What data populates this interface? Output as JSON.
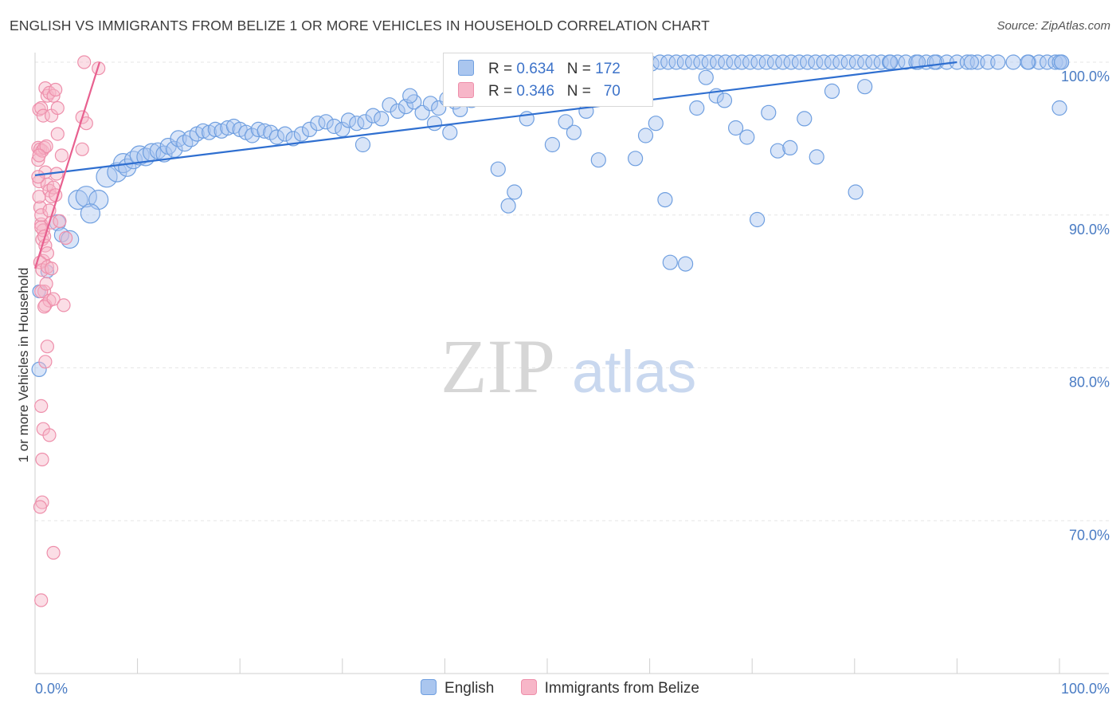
{
  "header": {
    "title": "ENGLISH VS IMMIGRANTS FROM BELIZE 1 OR MORE VEHICLES IN HOUSEHOLD CORRELATION CHART",
    "source": "Source: ZipAtlas.com"
  },
  "legend": {
    "rows": [
      {
        "r_label": "R =",
        "r_value": "0.634",
        "n_label": "N =",
        "n_value": "172"
      },
      {
        "r_label": "R =",
        "r_value": "0.346",
        "n_label": "N =",
        "n_value": "70"
      }
    ],
    "bottom": [
      "English",
      "Immigrants from Belize"
    ]
  },
  "watermark": {
    "zip": "ZIP",
    "atlas": "atlas"
  },
  "colors": {
    "english_fill": "#aac6ef",
    "english_stroke": "#6f9fe0",
    "english_line": "#2f6fd0",
    "belize_fill": "#f7b6c8",
    "belize_stroke": "#ee8fab",
    "belize_line": "#e8608f",
    "grid": "#e6e6e6",
    "tick_text": "#4a7cc4"
  },
  "chart_data": {
    "type": "scatter",
    "title": "ENGLISH VS IMMIGRANTS FROM BELIZE 1 OR MORE VEHICLES IN HOUSEHOLD CORRELATION CHART",
    "xlabel": "",
    "ylabel": "1 or more Vehicles in Household",
    "xlim": [
      0,
      100
    ],
    "ylim": [
      60,
      100
    ],
    "x_tick_labels": [
      "0.0%",
      "100.0%"
    ],
    "y_ticks": [
      {
        "value": 70,
        "label": "70.0%"
      },
      {
        "value": 80,
        "label": "80.0%"
      },
      {
        "value": 90,
        "label": "90.0%"
      },
      {
        "value": 100,
        "label": "100.0%"
      }
    ],
    "series": [
      {
        "name": "English",
        "R": 0.634,
        "N": 172,
        "trend": {
          "x": [
            0,
            90
          ],
          "y": [
            92.6,
            100.0
          ]
        },
        "points": [
          [
            0.4,
            85.0,
            8
          ],
          [
            0.4,
            79.9,
            9
          ],
          [
            1.2,
            86.3,
            8
          ],
          [
            2.2,
            89.5,
            10
          ],
          [
            2.6,
            88.7,
            9
          ],
          [
            3.4,
            88.4,
            11
          ],
          [
            4.2,
            91.0,
            12
          ],
          [
            5.0,
            91.2,
            13
          ],
          [
            6.2,
            91.0,
            12
          ],
          [
            5.4,
            90.1,
            12
          ],
          [
            7.0,
            92.5,
            13
          ],
          [
            8.0,
            92.8,
            12
          ],
          [
            8.6,
            93.4,
            12
          ],
          [
            9.0,
            93.1,
            11
          ],
          [
            9.6,
            93.6,
            11
          ],
          [
            10.2,
            93.9,
            12
          ],
          [
            10.8,
            93.8,
            11
          ],
          [
            11.4,
            94.1,
            11
          ],
          [
            12.0,
            94.2,
            10
          ],
          [
            12.6,
            94.0,
            10
          ],
          [
            13.0,
            94.5,
            10
          ],
          [
            13.6,
            94.3,
            10
          ],
          [
            14.0,
            95.0,
            10
          ],
          [
            14.6,
            94.7,
            10
          ],
          [
            15.2,
            95.0,
            10
          ],
          [
            15.8,
            95.3,
            9
          ],
          [
            16.4,
            95.5,
            9
          ],
          [
            17.0,
            95.4,
            9
          ],
          [
            17.6,
            95.6,
            9
          ],
          [
            18.2,
            95.5,
            9
          ],
          [
            18.8,
            95.7,
            9
          ],
          [
            19.4,
            95.8,
            9
          ],
          [
            20.0,
            95.6,
            9
          ],
          [
            20.6,
            95.4,
            9
          ],
          [
            21.2,
            95.2,
            9
          ],
          [
            21.8,
            95.6,
            9
          ],
          [
            22.4,
            95.5,
            9
          ],
          [
            23.0,
            95.4,
            9
          ],
          [
            23.6,
            95.1,
            9
          ],
          [
            24.4,
            95.3,
            9
          ],
          [
            25.2,
            95.0,
            9
          ],
          [
            26.0,
            95.3,
            9
          ],
          [
            26.8,
            95.6,
            9
          ],
          [
            27.6,
            96.0,
            9
          ],
          [
            28.4,
            96.1,
            9
          ],
          [
            29.2,
            95.8,
            9
          ],
          [
            30.0,
            95.6,
            9
          ],
          [
            30.6,
            96.2,
            9
          ],
          [
            31.4,
            96.0,
            9
          ],
          [
            32.2,
            96.1,
            9
          ],
          [
            33.0,
            96.5,
            9
          ],
          [
            33.8,
            96.3,
            9
          ],
          [
            34.6,
            97.2,
            9
          ],
          [
            35.4,
            96.8,
            9
          ],
          [
            36.2,
            97.1,
            9
          ],
          [
            37.0,
            97.4,
            9
          ],
          [
            37.8,
            96.7,
            9
          ],
          [
            38.6,
            97.3,
            9
          ],
          [
            39.4,
            97.0,
            9
          ],
          [
            40.2,
            97.6,
            9
          ],
          [
            41.0,
            97.4,
            9
          ],
          [
            41.8,
            97.7,
            9
          ],
          [
            42.6,
            97.5,
            9
          ],
          [
            43.4,
            98.3,
            9
          ],
          [
            44.2,
            98.6,
            9
          ],
          [
            45.0,
            98.2,
            9
          ],
          [
            45.8,
            98.8,
            9
          ],
          [
            46.6,
            98.5,
            9
          ],
          [
            47.4,
            98.9,
            9
          ],
          [
            48.2,
            99.1,
            9
          ],
          [
            49.0,
            98.9,
            9
          ],
          [
            49.8,
            99.3,
            9
          ],
          [
            50.6,
            99.5,
            9
          ],
          [
            51.4,
            99.2,
            9
          ],
          [
            52.2,
            99.6,
            9
          ],
          [
            53.0,
            99.8,
            9
          ],
          [
            53.8,
            99.7,
            9
          ],
          [
            54.6,
            99.9,
            9
          ],
          [
            55.4,
            100.0,
            9
          ],
          [
            56.2,
            100.0,
            9
          ],
          [
            57.0,
            100.0,
            9
          ],
          [
            57.8,
            99.8,
            9
          ],
          [
            58.6,
            100.0,
            9
          ],
          [
            59.4,
            100.0,
            9
          ],
          [
            60.2,
            99.9,
            9
          ],
          [
            61.0,
            100.0,
            9
          ],
          [
            61.8,
            100.0,
            9
          ],
          [
            62.6,
            100.0,
            9
          ],
          [
            63.4,
            100.0,
            9
          ],
          [
            64.2,
            100.0,
            9
          ],
          [
            65.0,
            100.0,
            9
          ],
          [
            65.8,
            100.0,
            9
          ],
          [
            66.6,
            100.0,
            9
          ],
          [
            67.4,
            100.0,
            9
          ],
          [
            68.2,
            100.0,
            9
          ],
          [
            69.0,
            100.0,
            9
          ],
          [
            69.8,
            100.0,
            9
          ],
          [
            70.6,
            100.0,
            9
          ],
          [
            71.4,
            100.0,
            9
          ],
          [
            72.2,
            100.0,
            9
          ],
          [
            73.0,
            100.0,
            9
          ],
          [
            73.8,
            100.0,
            9
          ],
          [
            74.6,
            100.0,
            9
          ],
          [
            75.4,
            100.0,
            9
          ],
          [
            76.2,
            100.0,
            9
          ],
          [
            77.0,
            100.0,
            9
          ],
          [
            77.8,
            100.0,
            9
          ],
          [
            78.6,
            100.0,
            9
          ],
          [
            79.4,
            100.0,
            9
          ],
          [
            80.2,
            100.0,
            9
          ],
          [
            81.0,
            100.0,
            9
          ],
          [
            81.8,
            100.0,
            9
          ],
          [
            82.6,
            100.0,
            9
          ],
          [
            83.4,
            100.0,
            9
          ],
          [
            84.2,
            100.0,
            9
          ],
          [
            85.0,
            100.0,
            9
          ],
          [
            86.0,
            100.0,
            9
          ],
          [
            87.0,
            100.0,
            9
          ],
          [
            88.0,
            100.0,
            9
          ],
          [
            89.0,
            100.0,
            9
          ],
          [
            90.0,
            100.0,
            9
          ],
          [
            91.0,
            100.0,
            9
          ],
          [
            92.0,
            100.0,
            9
          ],
          [
            93.0,
            100.0,
            9
          ],
          [
            94.0,
            100.0,
            9
          ],
          [
            95.5,
            100.0,
            9
          ],
          [
            97.0,
            100.0,
            9
          ],
          [
            98.0,
            100.0,
            9
          ],
          [
            98.8,
            100.0,
            9
          ],
          [
            99.6,
            100.0,
            9
          ],
          [
            100.2,
            100.0,
            9
          ],
          [
            32.0,
            94.6,
            9
          ],
          [
            36.6,
            97.8,
            9
          ],
          [
            39.0,
            96.0,
            9
          ],
          [
            40.5,
            95.4,
            9
          ],
          [
            41.5,
            96.9,
            9
          ],
          [
            42.8,
            99.4,
            9
          ],
          [
            44.0,
            99.7,
            9
          ],
          [
            45.2,
            93.0,
            9
          ],
          [
            46.2,
            90.6,
            9
          ],
          [
            46.8,
            91.5,
            9
          ],
          [
            48.0,
            96.3,
            9
          ],
          [
            48.8,
            98.4,
            9
          ],
          [
            50.5,
            94.6,
            9
          ],
          [
            51.8,
            96.1,
            9
          ],
          [
            52.6,
            95.4,
            9
          ],
          [
            53.8,
            96.8,
            9
          ],
          [
            55.0,
            93.6,
            9
          ],
          [
            56.5,
            99.8,
            9
          ],
          [
            57.5,
            98.2,
            9
          ],
          [
            58.6,
            93.7,
            9
          ],
          [
            59.6,
            95.2,
            9
          ],
          [
            60.6,
            96.0,
            9
          ],
          [
            61.5,
            91.0,
            9
          ],
          [
            62.0,
            86.9,
            9
          ],
          [
            63.5,
            86.8,
            9
          ],
          [
            64.6,
            97.0,
            9
          ],
          [
            65.5,
            99.0,
            9
          ],
          [
            66.5,
            97.8,
            9
          ],
          [
            67.3,
            97.5,
            9
          ],
          [
            68.4,
            95.7,
            9
          ],
          [
            69.5,
            95.1,
            9
          ],
          [
            70.5,
            89.7,
            9
          ],
          [
            71.6,
            96.7,
            9
          ],
          [
            72.5,
            94.2,
            9
          ],
          [
            73.7,
            94.4,
            9
          ],
          [
            75.1,
            96.3,
            9
          ],
          [
            76.3,
            93.8,
            9
          ],
          [
            77.8,
            98.1,
            9
          ],
          [
            80.1,
            91.5,
            9
          ],
          [
            81.0,
            98.4,
            9
          ],
          [
            83.5,
            100.0,
            9
          ],
          [
            87.8,
            100.0,
            9
          ],
          [
            96.9,
            100.0,
            9
          ],
          [
            100.0,
            100.0,
            9
          ],
          [
            100.2,
            100.0,
            9
          ],
          [
            100.0,
            97.0,
            9
          ],
          [
            86.2,
            100.0,
            9
          ],
          [
            91.4,
            100.0,
            9
          ]
        ]
      },
      {
        "name": "Immigrants from Belize",
        "R": 0.346,
        "N": 70,
        "trend": {
          "x": [
            0,
            6.3
          ],
          "y": [
            86.5,
            100.0
          ]
        },
        "points": [
          [
            0.3,
            93.6
          ],
          [
            0.4,
            92.2
          ],
          [
            0.5,
            90.5
          ],
          [
            0.6,
            89.4
          ],
          [
            0.7,
            88.4
          ],
          [
            0.8,
            87.0
          ],
          [
            0.9,
            85.0
          ],
          [
            0.3,
            94.4
          ],
          [
            0.5,
            94.3
          ],
          [
            0.7,
            94.2
          ],
          [
            0.9,
            94.4
          ],
          [
            1.1,
            94.5
          ],
          [
            0.4,
            91.2
          ],
          [
            0.6,
            90.0
          ],
          [
            0.8,
            89.0
          ],
          [
            1.0,
            88.0
          ],
          [
            1.2,
            87.5
          ],
          [
            0.4,
            96.9
          ],
          [
            0.6,
            97.0
          ],
          [
            0.8,
            96.5
          ],
          [
            1.0,
            98.3
          ],
          [
            1.2,
            97.8
          ],
          [
            1.4,
            98.0
          ],
          [
            1.6,
            96.5
          ],
          [
            1.8,
            97.8
          ],
          [
            2.0,
            98.2
          ],
          [
            2.2,
            97.0
          ],
          [
            1.0,
            92.8
          ],
          [
            1.2,
            92.0
          ],
          [
            1.4,
            91.6
          ],
          [
            1.6,
            91.2
          ],
          [
            1.8,
            91.8
          ],
          [
            2.0,
            91.3
          ],
          [
            2.2,
            95.3
          ],
          [
            2.6,
            93.9
          ],
          [
            0.5,
            86.9
          ],
          [
            0.7,
            86.4
          ],
          [
            1.2,
            86.6
          ],
          [
            1.6,
            86.5
          ],
          [
            0.6,
            85.0
          ],
          [
            1.0,
            84.1
          ],
          [
            1.4,
            84.4
          ],
          [
            1.8,
            84.5
          ],
          [
            2.8,
            84.1
          ],
          [
            0.9,
            84.0
          ],
          [
            1.2,
            81.4
          ],
          [
            1.0,
            80.4
          ],
          [
            0.6,
            77.5
          ],
          [
            0.8,
            76.0
          ],
          [
            1.4,
            75.6
          ],
          [
            0.7,
            74.0
          ],
          [
            0.7,
            71.2
          ],
          [
            0.5,
            70.9
          ],
          [
            1.8,
            67.9
          ],
          [
            0.6,
            64.8
          ],
          [
            4.6,
            96.4
          ],
          [
            5.0,
            96.0
          ],
          [
            4.6,
            94.3
          ],
          [
            6.2,
            99.6
          ],
          [
            4.8,
            100.0
          ],
          [
            1.4,
            90.3
          ],
          [
            1.6,
            89.5
          ],
          [
            0.4,
            93.9
          ],
          [
            0.3,
            92.5
          ],
          [
            0.6,
            89.2
          ],
          [
            0.9,
            88.6
          ],
          [
            1.1,
            85.5
          ],
          [
            2.1,
            92.7
          ],
          [
            2.4,
            89.6
          ],
          [
            3.0,
            88.5
          ]
        ]
      }
    ]
  }
}
